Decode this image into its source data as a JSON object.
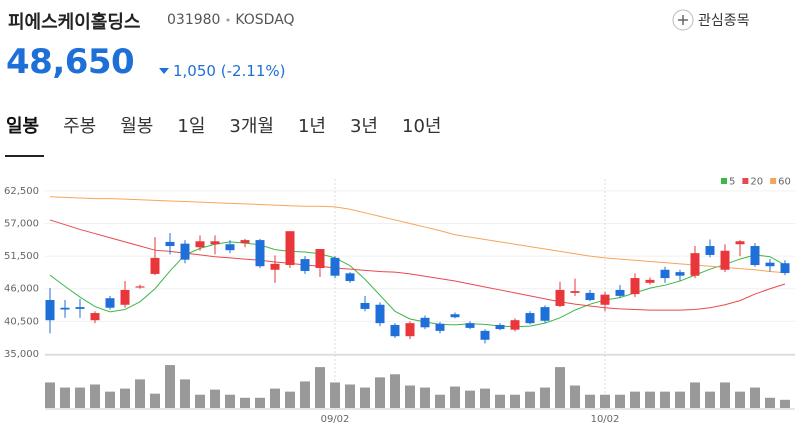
{
  "header": {
    "title": "피에스케이홀딩스",
    "code": "031980",
    "market": "KOSDAQ",
    "price": "48,650",
    "change": "1,050",
    "change_pct": "(-2.11%)",
    "watch_button": "관심종목"
  },
  "tabs": [
    "일봉",
    "주봉",
    "월봉",
    "1일",
    "3개월",
    "1년",
    "3년",
    "10년"
  ],
  "chart_data": {
    "type": "candlestick",
    "categories": [
      null,
      null,
      null,
      null,
      null,
      null,
      null,
      null,
      null,
      null,
      null,
      null,
      null,
      null,
      null,
      null,
      null,
      null,
      null,
      "09/02",
      null,
      null,
      null,
      null,
      null,
      null,
      null,
      null,
      null,
      null,
      null,
      null,
      null,
      null,
      null,
      null,
      null,
      "10/02",
      null,
      null,
      null,
      null,
      null,
      null,
      null,
      null,
      null,
      null,
      null,
      null
    ],
    "ohlc": {
      "up_color": "#e8363a",
      "down_color": "#1f6fd8",
      "open": [
        44100,
        42800,
        42900,
        40700,
        44400,
        43300,
        46200,
        48500,
        53900,
        53600,
        53000,
        53500,
        53500,
        53700,
        54200,
        49200,
        50000,
        51000,
        49500,
        51200,
        48600,
        43600,
        43300,
        39900,
        38000,
        41100,
        40100,
        41700,
        40200,
        38900,
        39900,
        39100,
        41900,
        42900,
        43100,
        45300,
        45300,
        43300,
        45800,
        45100,
        47000,
        49200,
        48800,
        48200,
        53200,
        49200,
        53500,
        53200,
        50400,
        50300
      ],
      "high": [
        46100,
        44100,
        44300,
        42200,
        44800,
        47300,
        46700,
        54700,
        55400,
        54200,
        55000,
        55000,
        54200,
        54400,
        54400,
        51600,
        55700,
        51500,
        52700,
        51500,
        48800,
        44800,
        43700,
        40200,
        40500,
        41500,
        40400,
        42000,
        40500,
        39200,
        40200,
        41000,
        42200,
        43200,
        47200,
        47700,
        45800,
        45500,
        46600,
        48600,
        47900,
        49700,
        49200,
        53200,
        54300,
        53500,
        54200,
        53700,
        51000,
        50800
      ],
      "low": [
        38500,
        41100,
        41100,
        40200,
        42500,
        42800,
        46000,
        48300,
        51800,
        50300,
        52400,
        51800,
        52000,
        53000,
        49500,
        47000,
        49500,
        48500,
        48000,
        47800,
        47000,
        42200,
        39700,
        37700,
        37500,
        39200,
        38500,
        41000,
        39200,
        36800,
        39000,
        38800,
        40000,
        40300,
        42900,
        44800,
        43900,
        42200,
        44500,
        44600,
        46700,
        47000,
        47400,
        47800,
        51300,
        48800,
        51500,
        49700,
        48900,
        48300
      ],
      "close": [
        40700,
        42500,
        42600,
        41900,
        42800,
        45800,
        46400,
        51200,
        53200,
        50900,
        54000,
        54000,
        52500,
        54200,
        49800,
        50200,
        55700,
        49000,
        52700,
        48200,
        47300,
        42600,
        40200,
        38000,
        40200,
        39500,
        38900,
        41200,
        39400,
        37400,
        39200,
        40700,
        40200,
        40600,
        45800,
        45600,
        44100,
        45000,
        44800,
        47800,
        47500,
        47800,
        48200,
        52000,
        51700,
        52400,
        54000,
        50000,
        49800,
        48650
      ]
    },
    "series": [
      {
        "name": "5",
        "color": "#3cb846",
        "values": [
          48300,
          46400,
          44600,
          43000,
          42100,
          42500,
          43800,
          46000,
          49000,
          51700,
          52800,
          53500,
          53900,
          53700,
          53400,
          52600,
          52300,
          52200,
          51900,
          51200,
          49900,
          47600,
          44900,
          42200,
          40900,
          40400,
          40000,
          39900,
          40100,
          40000,
          39700,
          39600,
          39700,
          40200,
          41100,
          42400,
          43400,
          44100,
          44500,
          45300,
          46100,
          46600,
          47300,
          48300,
          49300,
          50100,
          51000,
          51700,
          51400,
          50000
        ]
      },
      {
        "name": "20",
        "color": "#e8494e",
        "values": [
          57600,
          56800,
          56000,
          55300,
          54600,
          53900,
          53200,
          52500,
          52300,
          52000,
          51700,
          51400,
          51200,
          51000,
          50800,
          50500,
          50300,
          50000,
          49800,
          49500,
          49300,
          49100,
          48900,
          48800,
          48500,
          48100,
          47700,
          47300,
          46800,
          46300,
          45800,
          45300,
          44800,
          44300,
          43800,
          43400,
          43100,
          42800,
          42600,
          42500,
          42400,
          42400,
          42400,
          42500,
          42800,
          43300,
          44000,
          45100,
          46000,
          46800
        ]
      },
      {
        "name": "60",
        "color": "#f5a55a",
        "values": [
          61500,
          61400,
          61300,
          61200,
          61200,
          61100,
          61000,
          60900,
          60800,
          60700,
          60600,
          60500,
          60400,
          60300,
          60200,
          60100,
          60000,
          59900,
          59900,
          59800,
          59400,
          58800,
          58200,
          57600,
          57000,
          56400,
          55800,
          55100,
          54700,
          54300,
          53900,
          53500,
          53100,
          52700,
          52300,
          51900,
          51500,
          51200,
          51000,
          50800,
          50600,
          50400,
          50200,
          50000,
          49800,
          49600,
          49400,
          49200,
          48900,
          48700
        ]
      }
    ],
    "ylim": [
      35000,
      64500
    ],
    "yticks": [
      {
        "value": 35000,
        "label": "35,000"
      },
      {
        "value": 40500,
        "label": "40,500"
      },
      {
        "value": 46000,
        "label": "46,000"
      },
      {
        "value": 51500,
        "label": "51,500"
      },
      {
        "value": 57000,
        "label": "57,000"
      },
      {
        "value": 62500,
        "label": "62,500"
      }
    ],
    "grid": true,
    "legend": "top-right",
    "volume": {
      "color": "#999999",
      "ylim": [
        0,
        45
      ],
      "values": [
        25,
        20,
        20,
        23,
        16,
        19,
        28,
        14,
        42,
        28,
        13,
        18,
        13,
        10,
        10,
        19,
        16,
        26,
        40,
        25,
        23,
        20,
        30,
        33,
        22,
        20,
        13,
        21,
        17,
        19,
        13,
        13,
        16,
        20,
        40,
        22,
        13,
        13,
        13,
        16,
        16,
        16,
        16,
        25,
        16,
        25,
        16,
        20,
        10,
        8
      ]
    }
  }
}
